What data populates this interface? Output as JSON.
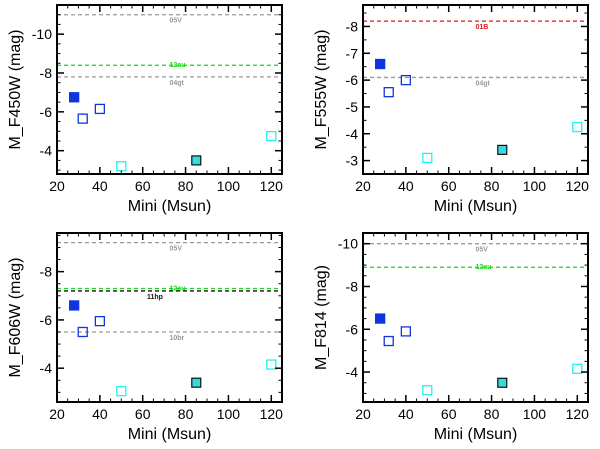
{
  "colors": {
    "frame": "#000000",
    "filled_blue": "#1035e0",
    "open_blue": "#1035e0",
    "cyan": "#25f0f0",
    "cyan_fill": "#3ad8d8",
    "gray_line": "#9a9a9a",
    "green_line": "#18d818",
    "red_line": "#e01818",
    "black_line": "#111111"
  },
  "chart_data": [
    {
      "type": "scatter",
      "ylabel": "M_F450W (mag)",
      "xlabel": "Mini (Msun)",
      "xlim": [
        20,
        125
      ],
      "ylim": [
        -2.8,
        -11.5
      ],
      "xticks": [
        20,
        40,
        60,
        80,
        100,
        120
      ],
      "yticks": [
        -4,
        -6,
        -8,
        -10
      ],
      "hlines": [
        {
          "label": "05V",
          "y": -11.0,
          "color": "gray",
          "dash": true
        },
        {
          "label": "12au",
          "y": -8.4,
          "color": "green",
          "dash": true
        },
        {
          "label": "04gt",
          "y": -7.8,
          "color": "gray",
          "dash": true
        }
      ],
      "points": [
        {
          "x": 28,
          "y": -6.75,
          "style": "filled_blue"
        },
        {
          "x": 32,
          "y": -5.65,
          "style": "open_blue"
        },
        {
          "x": 40,
          "y": -6.15,
          "style": "open_blue"
        },
        {
          "x": 50,
          "y": -3.2,
          "style": "open_cyan"
        },
        {
          "x": 85,
          "y": -3.5,
          "style": "filled_cyan"
        },
        {
          "x": 120,
          "y": -4.75,
          "style": "open_cyan"
        }
      ]
    },
    {
      "type": "scatter",
      "ylabel": "M_F555W (mag)",
      "xlabel": "Mini (Msun)",
      "xlim": [
        20,
        125
      ],
      "ylim": [
        -2.5,
        -8.8
      ],
      "xticks": [
        20,
        40,
        60,
        80,
        100,
        120
      ],
      "yticks": [
        -3,
        -4,
        -5,
        -6,
        -7,
        -8
      ],
      "hlines": [
        {
          "label": "01B",
          "y": -8.2,
          "color": "red",
          "dash": true
        },
        {
          "label": "04gt",
          "y": -6.1,
          "color": "gray",
          "dash": true
        }
      ],
      "points": [
        {
          "x": 28,
          "y": -6.6,
          "style": "filled_blue"
        },
        {
          "x": 32,
          "y": -5.55,
          "style": "open_blue"
        },
        {
          "x": 40,
          "y": -6.0,
          "style": "open_blue"
        },
        {
          "x": 50,
          "y": -3.1,
          "style": "open_cyan"
        },
        {
          "x": 85,
          "y": -3.4,
          "style": "filled_cyan"
        },
        {
          "x": 120,
          "y": -4.25,
          "style": "open_cyan"
        }
      ]
    },
    {
      "type": "scatter",
      "ylabel": "M_F606W (mag)",
      "xlabel": "Mini (Msun)",
      "xlim": [
        20,
        125
      ],
      "ylim": [
        -2.6,
        -9.6
      ],
      "xticks": [
        20,
        40,
        60,
        80,
        100,
        120
      ],
      "yticks": [
        -4,
        -6,
        -8
      ],
      "hlines": [
        {
          "label": "05V",
          "y": -9.2,
          "color": "gray",
          "dash": true
        },
        {
          "label": "12au",
          "y": -7.3,
          "color": "green",
          "dash": true
        },
        {
          "label": "11hp",
          "y": -7.2,
          "color": "black",
          "dash": true
        },
        {
          "label": "10br",
          "y": -5.5,
          "color": "gray",
          "dash": true
        }
      ],
      "points": [
        {
          "x": 28,
          "y": -6.6,
          "style": "filled_blue"
        },
        {
          "x": 32,
          "y": -5.5,
          "style": "open_blue"
        },
        {
          "x": 40,
          "y": -5.95,
          "style": "open_blue"
        },
        {
          "x": 50,
          "y": -3.05,
          "style": "open_cyan"
        },
        {
          "x": 85,
          "y": -3.4,
          "style": "filled_cyan"
        },
        {
          "x": 120,
          "y": -4.15,
          "style": "open_cyan"
        }
      ]
    },
    {
      "type": "scatter",
      "ylabel": "M_F814 (mag)",
      "xlabel": "Mini (Msun)",
      "xlim": [
        20,
        125
      ],
      "ylim": [
        -2.6,
        -10.5
      ],
      "xticks": [
        20,
        40,
        60,
        80,
        100,
        120
      ],
      "yticks": [
        -4,
        -6,
        -8,
        -10
      ],
      "hlines": [
        {
          "label": "05V",
          "y": -10.0,
          "color": "gray",
          "dash": true
        },
        {
          "label": "12au",
          "y": -8.9,
          "color": "green",
          "dash": true
        }
      ],
      "points": [
        {
          "x": 28,
          "y": -6.5,
          "style": "filled_blue"
        },
        {
          "x": 32,
          "y": -5.45,
          "style": "open_blue"
        },
        {
          "x": 40,
          "y": -5.9,
          "style": "open_blue"
        },
        {
          "x": 50,
          "y": -3.15,
          "style": "open_cyan"
        },
        {
          "x": 85,
          "y": -3.5,
          "style": "filled_cyan"
        },
        {
          "x": 120,
          "y": -4.15,
          "style": "open_cyan"
        }
      ]
    }
  ]
}
